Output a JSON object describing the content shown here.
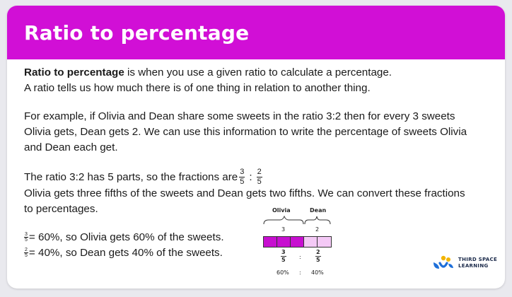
{
  "header": {
    "title": "Ratio to percentage"
  },
  "intro": {
    "term": "Ratio to percentage",
    "definition": " is when you use a given ratio to calculate a percentage.",
    "line2": "A ratio tells us how much there is of one thing in relation to another thing."
  },
  "example": {
    "line1": "For example, if Olivia and Dean share some sweets in the ratio 3:2 then for every 3 sweets",
    "line2": "Olivia gets, Dean gets 2. We can use this information to write the percentage of sweets Olivia",
    "line3": "and Dean each get."
  },
  "fractions": {
    "line1": "The ratio 3:2 has 5 parts, so the fractions are",
    "olivia_num": "3",
    "olivia_den": "5",
    "colon": ":",
    "dean_num": "2",
    "dean_den": "5",
    "line2": "Olivia gets three fifths of the sweets and Dean gets two fifths. We can convert these fractions",
    "line3": "to percentages."
  },
  "results": {
    "olivia_num": "3",
    "olivia_den": "5",
    "olivia_text": "= 60%, so Olivia gets 60% of the sweets.",
    "dean_num": "2",
    "dean_den": "5",
    "dean_text": "= 40%, so Dean gets 40% of the sweets."
  },
  "diagram": {
    "olivia_label": "Olivia",
    "dean_label": "Dean",
    "olivia_parts": "3",
    "dean_parts": "2",
    "olivia_frac_num": "3",
    "olivia_frac_den": "5",
    "dean_frac_num": "2",
    "dean_frac_den": "5",
    "colon": ":",
    "olivia_pct": "60%",
    "dean_pct": "40%",
    "colors": {
      "olivia": "#c70fd0",
      "dean": "#f4c9f6"
    }
  },
  "logo": {
    "line1": "THIRD SPACE",
    "line2": "LEARNING"
  },
  "colors": {
    "header": "#d10fd6",
    "background": "#e9e9ee"
  }
}
